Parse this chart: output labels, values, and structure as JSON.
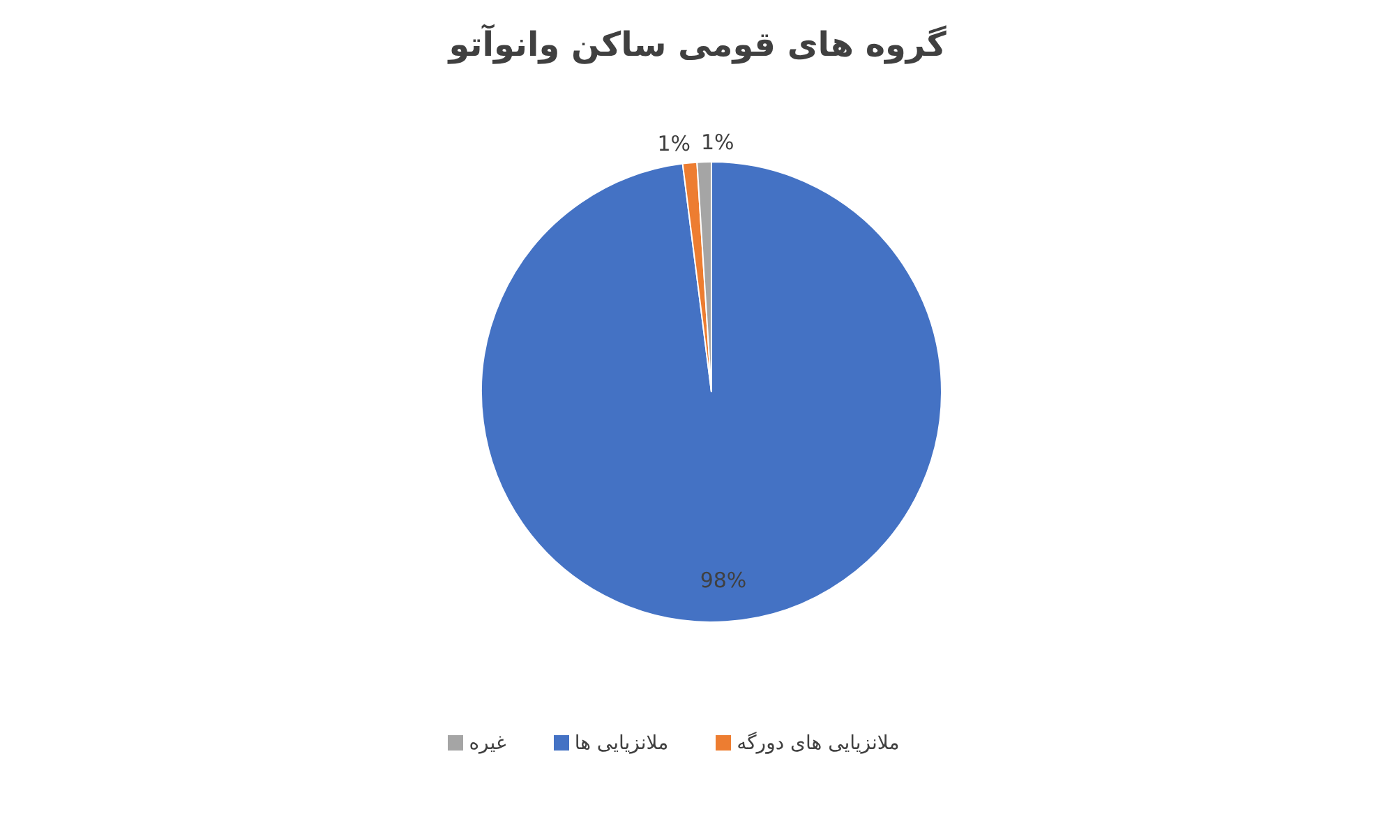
{
  "chart_data": {
    "type": "pie",
    "title": "گروه های قومی ساکن وانوآتو",
    "categories": [
      "ملانزیایی ها",
      "ملانزیایی های دورگه",
      "غیره"
    ],
    "values": [
      98,
      1,
      1
    ],
    "colors": [
      "#4472c4",
      "#ed7d31",
      "#a5a5a5"
    ],
    "value_labels": [
      "98%",
      "1%",
      "1%"
    ],
    "legend": "bottom"
  }
}
